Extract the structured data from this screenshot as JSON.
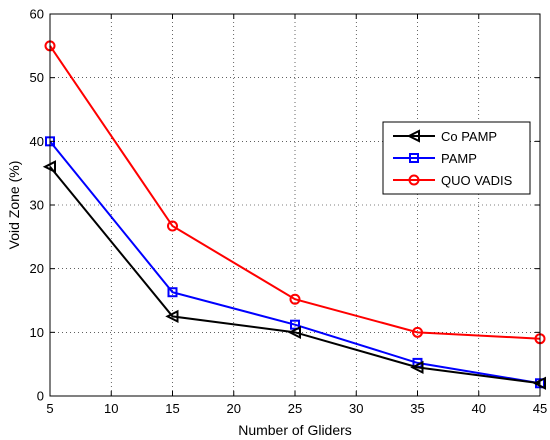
{
  "chart_data": {
    "type": "line",
    "title": "",
    "xlabel": "Number of Gliders",
    "ylabel": "Void Zone (%)",
    "xlim": [
      5,
      45
    ],
    "ylim": [
      0,
      60
    ],
    "xticks": [
      5,
      10,
      15,
      20,
      25,
      30,
      35,
      40,
      45
    ],
    "yticks": [
      0,
      10,
      20,
      30,
      40,
      50,
      60
    ],
    "grid": true,
    "legend_position": "right",
    "x": [
      5,
      15,
      25,
      35,
      45
    ],
    "series": [
      {
        "name": "Co PAMP",
        "color": "#000000",
        "marker": "triangle-left",
        "values": [
          36,
          12.5,
          10,
          4.5,
          2
        ]
      },
      {
        "name": "PAMP",
        "color": "#0000ff",
        "marker": "square",
        "values": [
          40,
          16.3,
          11.2,
          5.2,
          2
        ]
      },
      {
        "name": "QUO VADIS",
        "color": "#ff0000",
        "marker": "circle",
        "values": [
          55,
          26.7,
          15.2,
          10,
          9
        ]
      }
    ]
  }
}
